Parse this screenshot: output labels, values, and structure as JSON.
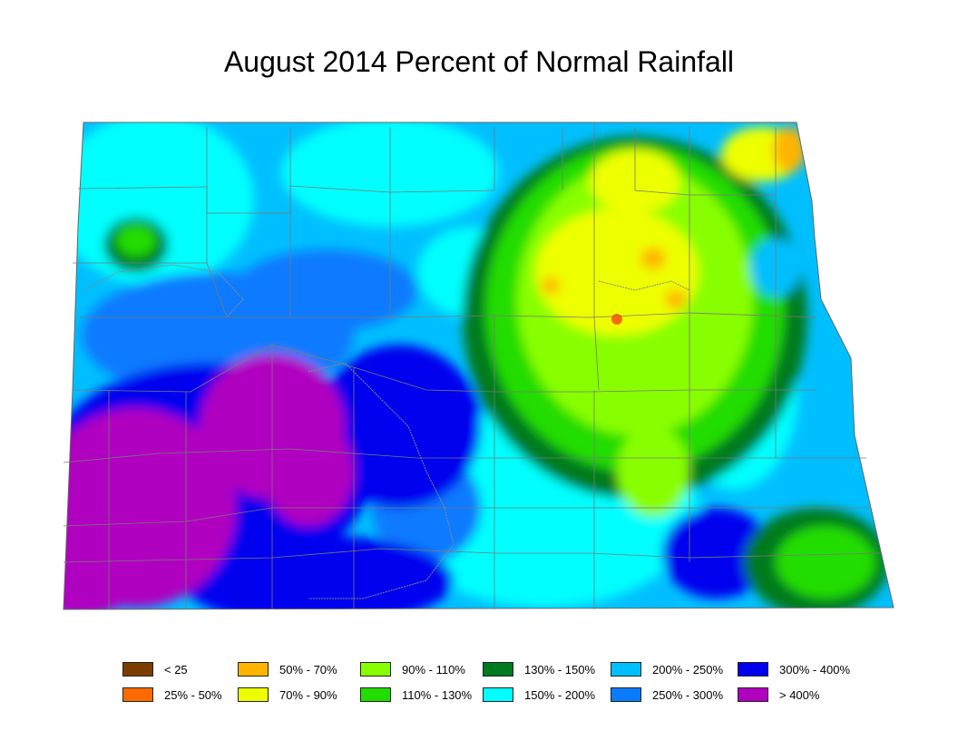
{
  "title": "August 2014 Percent of Normal Rainfall",
  "legend": [
    {
      "label": "< 25",
      "color": "#7a3d00"
    },
    {
      "label": "25% - 50%",
      "color": "#ff6a00"
    },
    {
      "label": "50% - 70%",
      "color": "#ffb400"
    },
    {
      "label": "70% - 90%",
      "color": "#eeff00"
    },
    {
      "label": "90% - 110%",
      "color": "#88ff00"
    },
    {
      "label": "110% - 130%",
      "color": "#22dd00"
    },
    {
      "label": "130% - 150%",
      "color": "#007a1e"
    },
    {
      "label": "150% - 200%",
      "color": "#00ffff"
    },
    {
      "label": "200% - 250%",
      "color": "#00bfff"
    },
    {
      "label": "250% - 300%",
      "color": "#0a7aff"
    },
    {
      "label": "300% - 400%",
      "color": "#0000ee"
    },
    {
      "label": "> 400%",
      "color": "#b000c0"
    }
  ]
}
